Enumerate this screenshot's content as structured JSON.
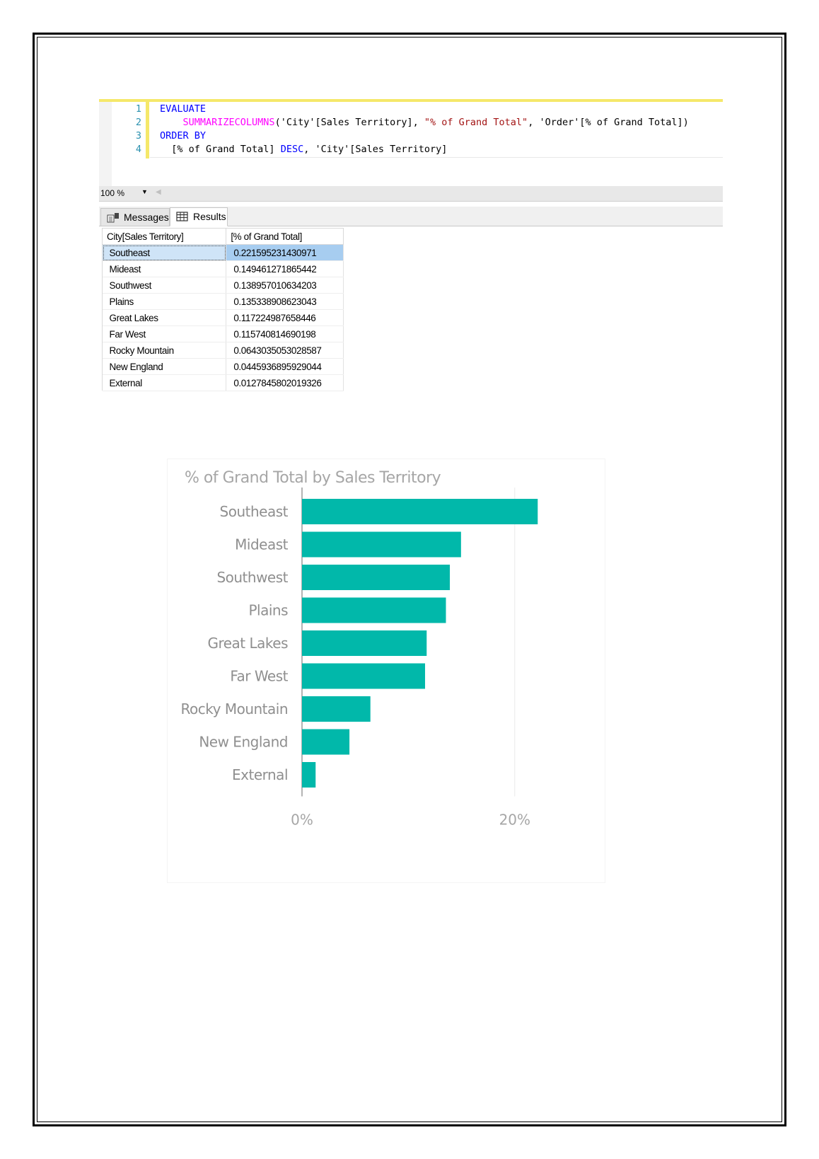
{
  "editor": {
    "lines": [
      {
        "num": "1",
        "tokens": [
          {
            "t": "EVALUATE",
            "c": "kw"
          }
        ]
      },
      {
        "num": "2",
        "tokens": [
          {
            "t": "    ",
            "c": "plain"
          },
          {
            "t": "SUMMARIZECOLUMNS",
            "c": "fn"
          },
          {
            "t": "('City'[Sales Territory], ",
            "c": "plain"
          },
          {
            "t": "\"% of Grand Total\"",
            "c": "str"
          },
          {
            "t": ", 'Order'[% of Grand Total])",
            "c": "plain"
          }
        ]
      },
      {
        "num": "3",
        "tokens": [
          {
            "t": "ORDER BY",
            "c": "kw"
          }
        ]
      },
      {
        "num": "4",
        "tokens": [
          {
            "t": "  [% of Grand Total] ",
            "c": "plain"
          },
          {
            "t": "DESC",
            "c": "kw"
          },
          {
            "t": ", 'City'[Sales Territory]",
            "c": "plain"
          }
        ]
      }
    ],
    "zoom": "100 %"
  },
  "tabs": {
    "messages": "Messages",
    "results": "Results",
    "messages_icon": "messages-icon",
    "results_icon": "grid-icon"
  },
  "results": {
    "headers": [
      "City[Sales Territory]",
      "[% of Grand Total]"
    ],
    "rows": [
      [
        "Southeast",
        "0.221595231430971"
      ],
      [
        "Mideast",
        "0.149461271865442"
      ],
      [
        "Southwest",
        "0.138957010634203"
      ],
      [
        "Plains",
        "0.135338908623043"
      ],
      [
        "Great Lakes",
        "0.117224987658446"
      ],
      [
        "Far West",
        "0.115740814690198"
      ],
      [
        "Rocky Mountain",
        "0.0643035053028587"
      ],
      [
        "New England",
        "0.0445936895929044"
      ],
      [
        "External",
        "0.0127845802019326"
      ]
    ]
  },
  "chart_data": {
    "type": "bar",
    "orientation": "horizontal",
    "title": "% of Grand Total by Sales Territory",
    "categories": [
      "Southeast",
      "Mideast",
      "Southwest",
      "Plains",
      "Great Lakes",
      "Far West",
      "Rocky Mountain",
      "New England",
      "External"
    ],
    "values": [
      0.2216,
      0.1495,
      0.139,
      0.1353,
      0.1172,
      0.1157,
      0.0643,
      0.0446,
      0.0128
    ],
    "xlim": [
      0,
      0.25
    ],
    "xticks": [
      {
        "value": 0,
        "label": "0%"
      },
      {
        "value": 0.2,
        "label": "20%"
      }
    ],
    "bar_color": "#01b8aa",
    "grid": true
  }
}
